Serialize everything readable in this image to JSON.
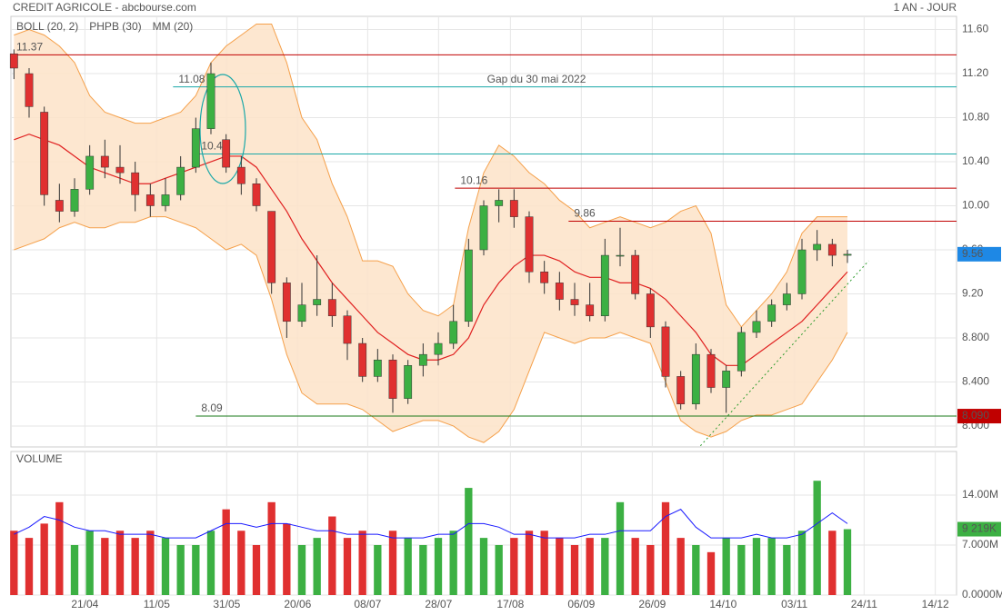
{
  "chart_data": {
    "type": "candlestick",
    "title": "CREDIT AGRICOLE - abcbourse.com",
    "period": "1 AN - JOUR",
    "legend": [
      {
        "name": "BOLL (20, 2)",
        "color": "#f5a04a"
      },
      {
        "name": "PHPB (30)",
        "color": "#2e9c2e"
      },
      {
        "name": "MM (20)",
        "color": "#e02020"
      }
    ],
    "annotation": "Gap du 30 mai 2022",
    "volume_title": "VOLUME",
    "up_color": "#3cb043",
    "down_color": "#e03030",
    "xlim": [
      -0.2,
      62.2
    ],
    "xticks": [
      {
        "value": 4.68,
        "label": "21/04"
      },
      {
        "value": 9.42,
        "label": "11/05"
      },
      {
        "value": 14.04,
        "label": "31/05"
      },
      {
        "value": 18.72,
        "label": "20/06"
      },
      {
        "value": 23.34,
        "label": "08/07"
      },
      {
        "value": 28.02,
        "label": "28/07"
      },
      {
        "value": 32.76,
        "label": "17/08"
      },
      {
        "value": 37.44,
        "label": "06/09"
      },
      {
        "value": 42.12,
        "label": "26/09"
      },
      {
        "value": 46.8,
        "label": "14/10"
      },
      {
        "value": 51.5,
        "label": "03/11"
      },
      {
        "value": 56.1,
        "label": "24/11"
      },
      {
        "value": 60.8,
        "label": "14/12"
      }
    ],
    "ylim": [
      7.81,
      11.72
    ],
    "yticks": [
      {
        "value": 11.6,
        "label": "11.60"
      },
      {
        "value": 11.2,
        "label": "11.20"
      },
      {
        "value": 10.8,
        "label": "10.80"
      },
      {
        "value": 10.4,
        "label": "10.40"
      },
      {
        "value": 10,
        "label": "10.00"
      },
      {
        "value": 9.6,
        "label": "9.60"
      },
      {
        "value": 9.2,
        "label": "9.20"
      },
      {
        "value": 8.8,
        "label": "8.800"
      },
      {
        "value": 8.4,
        "label": "8.400"
      },
      {
        "value": 8,
        "label": "8.000"
      }
    ],
    "vlim": [
      0,
      20.1
    ],
    "vticks": [
      {
        "value": 14,
        "label": "14.00M"
      },
      {
        "value": 7,
        "label": "7.000M"
      },
      {
        "value": 0,
        "label": "0.0000M"
      }
    ],
    "candles": [
      [
        11.38,
        11.42,
        11.15,
        11.25
      ],
      [
        11.2,
        11.25,
        10.8,
        10.9
      ],
      [
        10.85,
        10.9,
        10.0,
        10.1
      ],
      [
        10.05,
        10.2,
        9.85,
        9.95
      ],
      [
        9.95,
        10.25,
        9.9,
        10.15
      ],
      [
        10.15,
        10.55,
        10.1,
        10.45
      ],
      [
        10.45,
        10.6,
        10.25,
        10.35
      ],
      [
        10.35,
        10.55,
        10.2,
        10.3
      ],
      [
        10.3,
        10.4,
        9.95,
        10.1
      ],
      [
        10.1,
        10.2,
        9.9,
        10.0
      ],
      [
        10.0,
        10.25,
        9.95,
        10.1
      ],
      [
        10.1,
        10.45,
        10.05,
        10.35
      ],
      [
        10.35,
        10.8,
        10.3,
        10.7
      ],
      [
        10.7,
        11.3,
        10.65,
        11.2
      ],
      [
        10.6,
        10.65,
        10.3,
        10.35
      ],
      [
        10.35,
        10.45,
        10.1,
        10.2
      ],
      [
        10.2,
        10.25,
        9.95,
        10.0
      ],
      [
        9.95,
        9.95,
        9.2,
        9.3
      ],
      [
        9.3,
        9.35,
        8.8,
        8.95
      ],
      [
        8.95,
        9.3,
        8.9,
        9.1
      ],
      [
        9.1,
        9.55,
        9.0,
        9.15
      ],
      [
        9.15,
        9.3,
        8.9,
        9.0
      ],
      [
        9.0,
        9.05,
        8.6,
        8.75
      ],
      [
        8.75,
        8.8,
        8.4,
        8.45
      ],
      [
        8.45,
        8.7,
        8.4,
        8.6
      ],
      [
        8.6,
        8.65,
        8.12,
        8.25
      ],
      [
        8.25,
        8.6,
        8.2,
        8.55
      ],
      [
        8.55,
        8.75,
        8.45,
        8.65
      ],
      [
        8.65,
        8.85,
        8.55,
        8.75
      ],
      [
        8.75,
        9.1,
        8.7,
        8.95
      ],
      [
        8.95,
        9.7,
        8.9,
        9.6
      ],
      [
        9.6,
        10.05,
        9.55,
        10.0
      ],
      [
        10.0,
        10.15,
        9.85,
        10.05
      ],
      [
        10.05,
        10.15,
        9.8,
        9.9
      ],
      [
        9.9,
        9.95,
        9.3,
        9.4
      ],
      [
        9.4,
        9.5,
        9.2,
        9.3
      ],
      [
        9.3,
        9.4,
        9.05,
        9.15
      ],
      [
        9.15,
        9.3,
        9.0,
        9.1
      ],
      [
        9.1,
        9.3,
        8.95,
        9.0
      ],
      [
        9.0,
        9.7,
        8.95,
        9.55
      ],
      [
        9.55,
        9.8,
        9.45,
        9.55
      ],
      [
        9.55,
        9.6,
        9.15,
        9.2
      ],
      [
        9.2,
        9.25,
        8.8,
        8.9
      ],
      [
        8.9,
        8.95,
        8.35,
        8.45
      ],
      [
        8.45,
        8.5,
        8.15,
        8.2
      ],
      [
        8.2,
        8.75,
        8.15,
        8.65
      ],
      [
        8.65,
        8.7,
        8.3,
        8.35
      ],
      [
        8.35,
        8.55,
        8.12,
        8.5
      ],
      [
        8.5,
        8.9,
        8.45,
        8.85
      ],
      [
        8.85,
        9.05,
        8.8,
        8.95
      ],
      [
        8.95,
        9.15,
        8.9,
        9.1
      ],
      [
        9.1,
        9.3,
        9.05,
        9.2
      ],
      [
        9.2,
        9.7,
        9.15,
        9.6
      ],
      [
        9.6,
        9.78,
        9.5,
        9.65
      ],
      [
        9.65,
        9.7,
        9.45,
        9.55
      ],
      [
        9.55,
        9.6,
        9.48,
        9.56
      ]
    ],
    "boll_upper": [
      11.55,
      11.6,
      11.55,
      11.45,
      11.3,
      11.0,
      10.85,
      10.8,
      10.75,
      10.75,
      10.8,
      10.85,
      11.0,
      11.3,
      11.45,
      11.55,
      11.65,
      11.65,
      11.3,
      10.8,
      10.6,
      10.2,
      9.9,
      9.5,
      9.5,
      9.45,
      9.2,
      9.05,
      9.0,
      9.1,
      9.8,
      10.3,
      10.55,
      10.45,
      10.3,
      10.2,
      10.05,
      9.95,
      9.8,
      9.85,
      9.9,
      9.85,
      9.8,
      9.85,
      9.95,
      10.0,
      9.75,
      9.1,
      8.9,
      9.05,
      9.2,
      9.4,
      9.75,
      9.9,
      9.9,
      9.9
    ],
    "boll_lower": [
      9.6,
      9.65,
      9.7,
      9.8,
      9.85,
      9.8,
      9.8,
      9.85,
      9.85,
      9.9,
      9.9,
      9.85,
      9.8,
      9.7,
      9.6,
      9.65,
      9.55,
      9.15,
      8.65,
      8.3,
      8.2,
      8.2,
      8.2,
      8.15,
      8.05,
      7.95,
      8.0,
      8.05,
      8.05,
      8.0,
      7.9,
      7.85,
      7.95,
      8.15,
      8.5,
      8.85,
      8.8,
      8.75,
      8.8,
      8.8,
      8.85,
      8.8,
      8.75,
      8.4,
      8.05,
      7.95,
      7.9,
      7.95,
      8.05,
      8.1,
      8.1,
      8.15,
      8.2,
      8.4,
      8.6,
      8.85
    ],
    "mm": [
      10.6,
      10.65,
      10.6,
      10.55,
      10.45,
      10.35,
      10.3,
      10.25,
      10.2,
      10.2,
      10.25,
      10.3,
      10.35,
      10.4,
      10.45,
      10.45,
      10.35,
      10.15,
      9.95,
      9.7,
      9.5,
      9.3,
      9.15,
      9.0,
      8.85,
      8.75,
      8.65,
      8.6,
      8.6,
      8.65,
      8.8,
      9.1,
      9.3,
      9.45,
      9.55,
      9.55,
      9.5,
      9.4,
      9.35,
      9.35,
      9.3,
      9.3,
      9.25,
      9.15,
      9.0,
      8.85,
      8.65,
      8.55,
      8.55,
      8.65,
      8.75,
      8.85,
      8.95,
      9.1,
      9.25,
      9.4
    ],
    "volume": [
      9,
      8,
      10,
      13,
      7,
      9,
      8,
      9,
      8,
      9,
      8,
      7,
      7,
      9,
      12,
      9,
      7,
      13,
      10,
      7,
      8,
      11,
      8,
      9,
      7,
      9,
      8,
      7,
      8,
      9,
      15,
      8,
      7,
      8,
      9,
      9,
      8,
      7,
      8,
      8,
      13,
      8,
      7,
      13,
      8,
      7,
      6,
      8,
      7,
      8,
      8,
      7,
      9,
      16,
      9,
      9.219
    ],
    "volume_ma": [
      8.5,
      9.5,
      11,
      10.5,
      9.5,
      9,
      9,
      8.5,
      8.5,
      8.5,
      8,
      8,
      8,
      9,
      10,
      10,
      9.5,
      10,
      10,
      9.5,
      9,
      9,
      8.5,
      8.5,
      8.5,
      8,
      8,
      8,
      8.5,
      8.5,
      10,
      10,
      9.5,
      8.5,
      8.5,
      8,
      8,
      8,
      8.5,
      8.5,
      9,
      9,
      9,
      11,
      12,
      9.5,
      8,
      8,
      8,
      8.5,
      8,
      8,
      8.5,
      10,
      11.5,
      10
    ],
    "levels": [
      {
        "value": 11.37,
        "color": "#c00000",
        "start": -0.2
      },
      {
        "value": 11.08,
        "color": "#1aa8a8",
        "start": 10.5
      },
      {
        "value": 10.47,
        "color": "#1aa8a8",
        "start": 12
      },
      {
        "value": 10.16,
        "color": "#c00000",
        "start": 29.1
      },
      {
        "value": 9.86,
        "color": "#c00000",
        "start": 36.6
      },
      {
        "value": 8.09,
        "color": "#1a7a1a",
        "start": 12
      }
    ],
    "last_price": 9.56,
    "support_badge": {
      "value": 8.09,
      "label": "8.090"
    },
    "last_volume": {
      "value": 9.219,
      "label": "9 219K"
    },
    "trendline": {
      "x": [
        45.3,
        56.4
      ],
      "y": [
        7.82,
        9.5
      ]
    }
  }
}
